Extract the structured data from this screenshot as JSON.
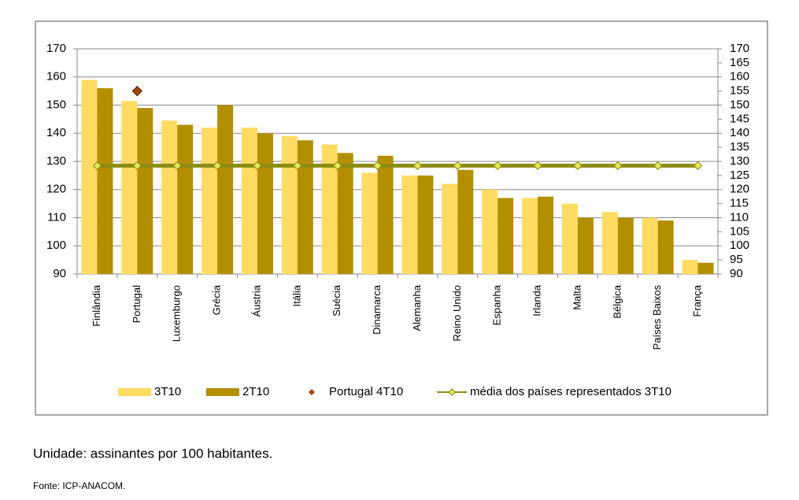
{
  "chart_data": {
    "type": "bar",
    "categories": [
      "Finlândia",
      "Portugal",
      "Luxemburgo",
      "Grécia",
      "Áustria",
      "Itália",
      "Suécia",
      "Dinamarca",
      "Alemanha",
      "Reino Unido",
      "Espanha",
      "Irlanda",
      "Malta",
      "Bélgica",
      "Países Baixos",
      "França"
    ],
    "series": [
      {
        "name": "3T10",
        "type": "bar",
        "color": "#ffdb61",
        "values": [
          159,
          151.5,
          144.5,
          142,
          142,
          139,
          136,
          126,
          125,
          122,
          120,
          117,
          115,
          112,
          110,
          95
        ]
      },
      {
        "name": "2T10",
        "type": "bar",
        "color": "#b38f00",
        "values": [
          156,
          149,
          143,
          150,
          140,
          137.5,
          133,
          132,
          125,
          127,
          117,
          117.5,
          110,
          110,
          109,
          94
        ]
      },
      {
        "name": "Portugal 4T10",
        "type": "marker",
        "color": "#a0460a",
        "values": [
          null,
          155,
          null,
          null,
          null,
          null,
          null,
          null,
          null,
          null,
          null,
          null,
          null,
          null,
          null,
          null
        ]
      },
      {
        "name": "média dos países representados 3T10",
        "type": "line",
        "color": "#8c8c14",
        "values": [
          128.5,
          128.5,
          128.5,
          128.5,
          128.5,
          128.5,
          128.5,
          128.5,
          128.5,
          128.5,
          128.5,
          128.5,
          128.5,
          128.5,
          128.5,
          128.5
        ]
      }
    ],
    "ylim": [
      90,
      170
    ],
    "yticks": [
      90,
      100,
      110,
      120,
      130,
      140,
      150,
      160,
      170
    ],
    "y2lim": [
      90,
      170
    ],
    "y2ticks": [
      90,
      95,
      100,
      105,
      110,
      115,
      120,
      125,
      130,
      135,
      140,
      145,
      150,
      155,
      160,
      165,
      170
    ],
    "grid": true
  },
  "footnotes": [
    "Unidade: assinantes por 100 habitantes.",
    "Fonte: ICP-ANACOM."
  ]
}
